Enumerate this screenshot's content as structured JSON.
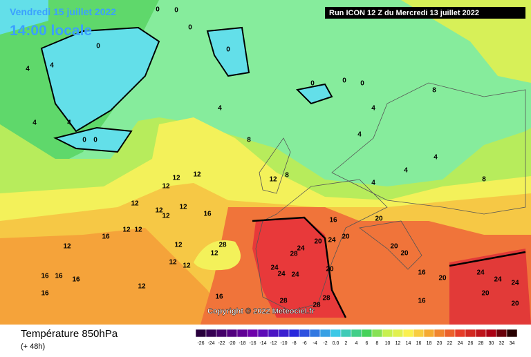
{
  "header": {
    "date": "Vendredi 15 juillet 2022",
    "time": "14:00 locale",
    "run": "Run ICON 12 Z du Mercredi 13 juillet 2022"
  },
  "copyright": "Copyright © 2022 Meteociel.fr",
  "footer": {
    "title": "Température 850hPa",
    "lead": "(+ 48h)"
  },
  "scale": [
    -26,
    -24,
    -22,
    -20,
    -18,
    -16,
    -14,
    -12,
    -10,
    -8,
    -6,
    -4,
    -2,
    {
      "value": 0,
      "label": "0.0"
    },
    2,
    4,
    6,
    8,
    10,
    12,
    14,
    16,
    18,
    20,
    22,
    24,
    26,
    28,
    30,
    32,
    34
  ],
  "contour_labels": [
    0,
    0,
    0,
    0,
    0,
    0,
    0,
    0,
    0,
    0,
    4,
    4,
    4,
    4,
    4,
    4,
    4,
    4,
    4,
    4,
    8,
    8,
    8,
    8,
    12,
    12,
    12,
    12,
    12,
    12,
    12,
    12,
    12,
    12,
    12,
    12,
    12,
    12,
    16,
    16,
    16,
    16,
    16,
    16,
    16,
    16,
    16,
    16,
    20,
    20,
    20,
    20,
    20,
    20,
    20,
    20,
    20,
    24,
    24,
    24,
    24,
    24,
    24,
    24,
    24,
    28,
    28,
    28,
    28,
    28,
    12,
    12,
    12
  ]
}
